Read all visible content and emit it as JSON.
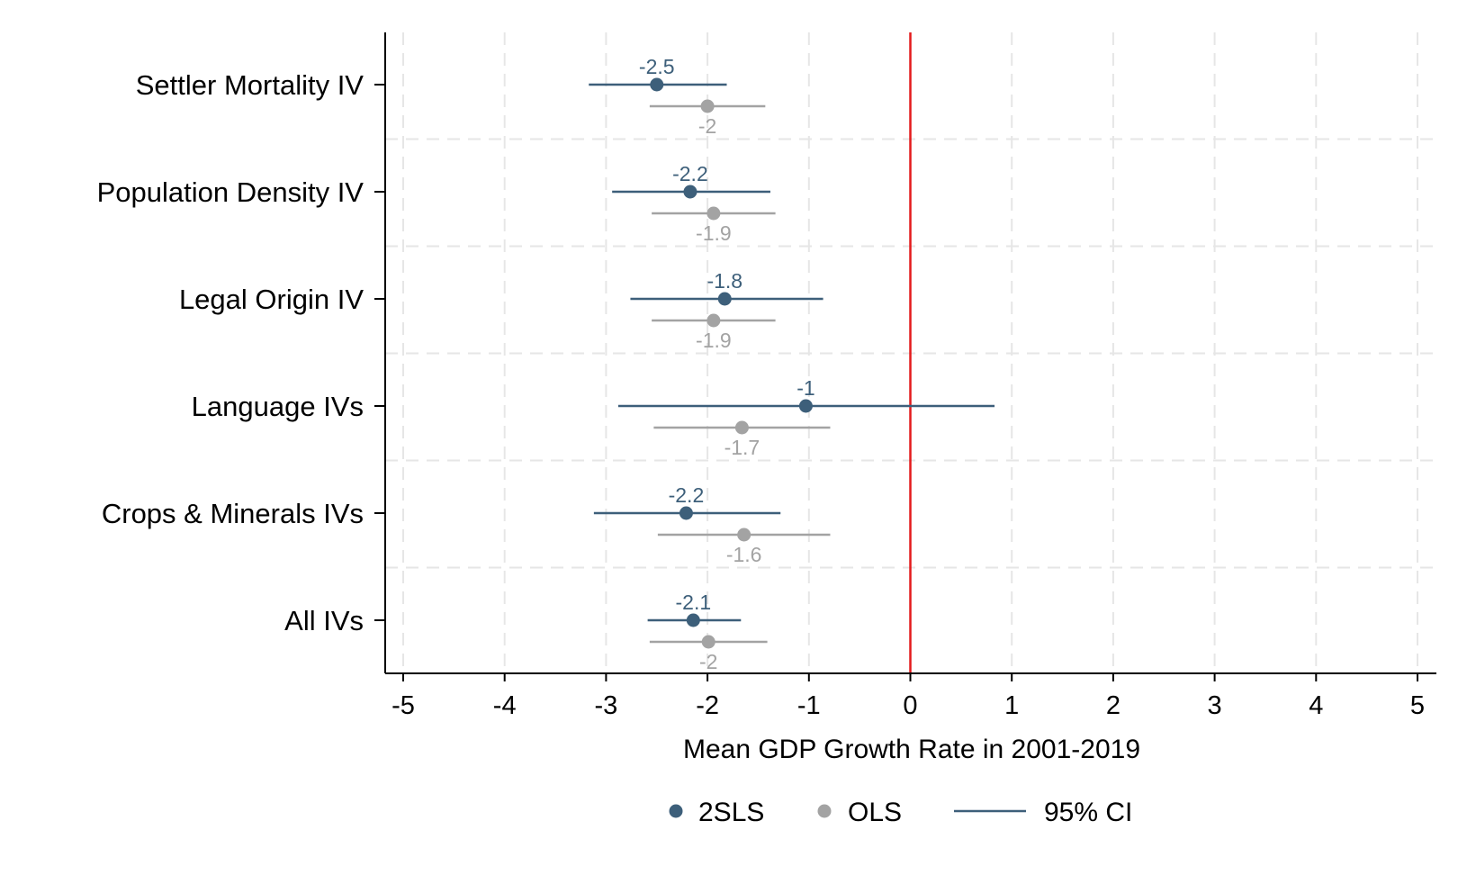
{
  "chart_data": {
    "type": "scatter",
    "subtype": "coefficient-plot",
    "xlabel": "Mean GDP Growth Rate in 2001-2019",
    "xlim": [
      -5,
      5
    ],
    "xticks": [
      -5,
      -4,
      -3,
      -2,
      -1,
      0,
      1,
      2,
      3,
      4,
      5
    ],
    "reference_line": {
      "x": 0,
      "color": "#e41a1c"
    },
    "grid": true,
    "legend_position": "bottom",
    "colors": {
      "2SLS": "#3d5f7a",
      "OLS": "#a3a3a3"
    },
    "categories": [
      "Settler Mortality IV",
      "Population Density IV",
      "Legal Origin IV",
      "Language IVs",
      "Crops & Minerals IVs",
      "All IVs"
    ],
    "series": [
      {
        "name": "2SLS",
        "points": [
          {
            "estimate": -2.5,
            "ci": [
              -3.17,
              -1.81
            ],
            "label": "-2.5"
          },
          {
            "estimate": -2.17,
            "ci": [
              -2.94,
              -1.38
            ],
            "label": "-2.2"
          },
          {
            "estimate": -1.83,
            "ci": [
              -2.76,
              -0.86
            ],
            "label": "-1.8"
          },
          {
            "estimate": -1.03,
            "ci": [
              -2.88,
              0.83
            ],
            "label": "-1"
          },
          {
            "estimate": -2.21,
            "ci": [
              -3.12,
              -1.28
            ],
            "label": "-2.2"
          },
          {
            "estimate": -2.14,
            "ci": [
              -2.59,
              -1.67
            ],
            "label": "-2.1"
          }
        ]
      },
      {
        "name": "OLS",
        "points": [
          {
            "estimate": -2.0,
            "ci": [
              -2.57,
              -1.43
            ],
            "label": "-2"
          },
          {
            "estimate": -1.94,
            "ci": [
              -2.55,
              -1.33
            ],
            "label": "-1.9"
          },
          {
            "estimate": -1.94,
            "ci": [
              -2.55,
              -1.33
            ],
            "label": "-1.9"
          },
          {
            "estimate": -1.66,
            "ci": [
              -2.53,
              -0.79
            ],
            "label": "-1.7"
          },
          {
            "estimate": -1.64,
            "ci": [
              -2.49,
              -0.79
            ],
            "label": "-1.6"
          },
          {
            "estimate": -1.99,
            "ci": [
              -2.57,
              -1.41
            ],
            "label": "-2"
          }
        ]
      }
    ],
    "legend": [
      {
        "label": "2SLS",
        "kind": "marker",
        "series": "2SLS"
      },
      {
        "label": "OLS",
        "kind": "marker",
        "series": "OLS"
      },
      {
        "label": "95% CI",
        "kind": "line",
        "series": "2SLS"
      }
    ]
  }
}
